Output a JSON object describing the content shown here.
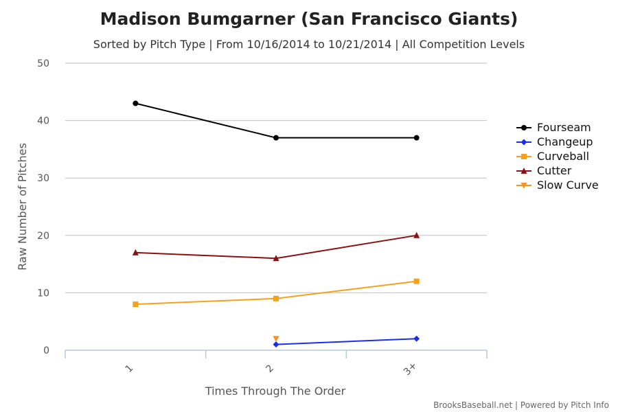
{
  "chart_data": {
    "type": "line",
    "title": "Madison Bumgarner (San Francisco Giants)",
    "subtitle": "Sorted by Pitch Type | From 10/16/2014 to 10/21/2014 | All Competition Levels",
    "xlabel": "Times Through The Order",
    "ylabel": "Raw Number of Pitches",
    "categories": [
      "1",
      "2",
      "3+"
    ],
    "ylim": [
      0,
      50
    ],
    "yticks": [
      0,
      10,
      20,
      30,
      40,
      50
    ],
    "grid": true,
    "legend_position": "right",
    "series": [
      {
        "name": "Fourseam",
        "color": "#000000",
        "marker": "circle",
        "values": [
          43,
          37,
          37
        ]
      },
      {
        "name": "Changeup",
        "color": "#1a2ef0",
        "marker": "diamond",
        "values": [
          null,
          1,
          2
        ]
      },
      {
        "name": "Curveball",
        "color": "#f7a11a",
        "marker": "square",
        "values": [
          8,
          9,
          12
        ]
      },
      {
        "name": "Cutter",
        "color": "#8b1010",
        "marker": "triangle",
        "values": [
          17,
          16,
          20
        ]
      },
      {
        "name": "Slow Curve",
        "color": "#f7931e",
        "marker": "triangle-down",
        "values": [
          null,
          2,
          null
        ]
      }
    ],
    "credits": "BrooksBaseball.net | Powered by Pitch Info"
  }
}
